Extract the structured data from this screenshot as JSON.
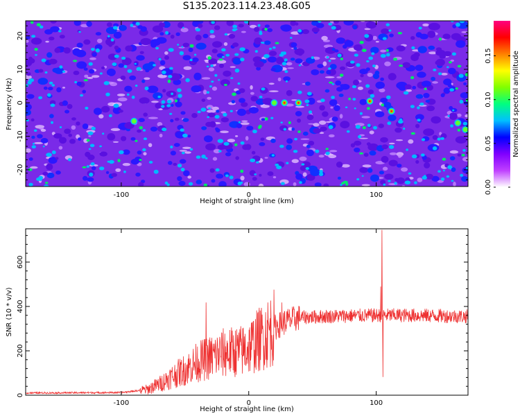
{
  "chart_data": [
    {
      "type": "heatmap",
      "title": "S135.2023.114.23.48.G05",
      "xlabel": "Height of straight line (km)",
      "ylabel": "Frequency (Hz)",
      "xlim": [
        -175,
        172
      ],
      "ylim": [
        -25,
        24.5
      ],
      "x_ticks": [
        -100,
        0,
        100
      ],
      "x_tick_labels": [
        "-100",
        "0",
        "100"
      ],
      "y_ticks": [
        -20,
        -10,
        0,
        10,
        20
      ],
      "y_tick_labels": [
        "-20",
        "-10",
        "0",
        "10",
        "20"
      ],
      "colorbar": {
        "label": "Normalized spectral amplitude",
        "range": [
          0,
          0.19
        ],
        "ticks": [
          0,
          0.05,
          0.1,
          0.15
        ],
        "tick_labels": [
          "0.00",
          "0.05",
          "0.10",
          "0.15"
        ],
        "colors": [
          "#ffffff",
          "#c040ff",
          "#8000ff",
          "#0000ff",
          "#00c0ff",
          "#00ff80",
          "#80ff00",
          "#ffff00",
          "#ff8000",
          "#ff0000",
          "#ff0080"
        ]
      },
      "background_level": 0.02,
      "peaks": [
        {
          "x": 20,
          "y": 0,
          "value": 0.12
        },
        {
          "x": 28,
          "y": 0,
          "value": 0.15
        },
        {
          "x": 39,
          "y": 0,
          "value": 0.18
        },
        {
          "x": 95,
          "y": 0.5,
          "value": 0.18
        },
        {
          "x": 112,
          "y": -2.5,
          "value": 0.18
        },
        {
          "x": -90,
          "y": -5.5,
          "value": 0.09
        },
        {
          "x": 164,
          "y": -6,
          "value": 0.09
        },
        {
          "x": 170,
          "y": -8,
          "value": 0.09
        }
      ]
    },
    {
      "type": "line",
      "xlabel": "Height of straight line (km)",
      "ylabel": "SNR (10 * v/v)",
      "xlim": [
        -175,
        172
      ],
      "ylim": [
        0,
        750
      ],
      "x_ticks": [
        -100,
        0,
        100
      ],
      "x_tick_labels": [
        "-100",
        "0",
        "100"
      ],
      "y_ticks": [
        0,
        200,
        400,
        600
      ],
      "y_tick_labels": [
        "0",
        "200",
        "400",
        "600"
      ],
      "color": "#ee3030",
      "trend": [
        [
          -175,
          10
        ],
        [
          -100,
          12
        ],
        [
          -80,
          25
        ],
        [
          -70,
          50
        ],
        [
          -60,
          85
        ],
        [
          -50,
          115
        ],
        [
          -40,
          150
        ],
        [
          -30,
          170
        ],
        [
          -20,
          190
        ],
        [
          -12,
          195
        ],
        [
          -5,
          200
        ],
        [
          0,
          215
        ],
        [
          10,
          260
        ],
        [
          20,
          305
        ],
        [
          30,
          335
        ],
        [
          40,
          350
        ],
        [
          60,
          355
        ],
        [
          80,
          358
        ],
        [
          100,
          360
        ],
        [
          130,
          360
        ],
        [
          172,
          355
        ]
      ],
      "spikes": [
        {
          "x": -33.5,
          "y": 418
        },
        {
          "x": 103.5,
          "y": 490
        },
        {
          "x": 104.5,
          "y": 745
        },
        {
          "x": 105.2,
          "y": 82
        },
        {
          "x": 26,
          "y": 418
        }
      ]
    }
  ]
}
